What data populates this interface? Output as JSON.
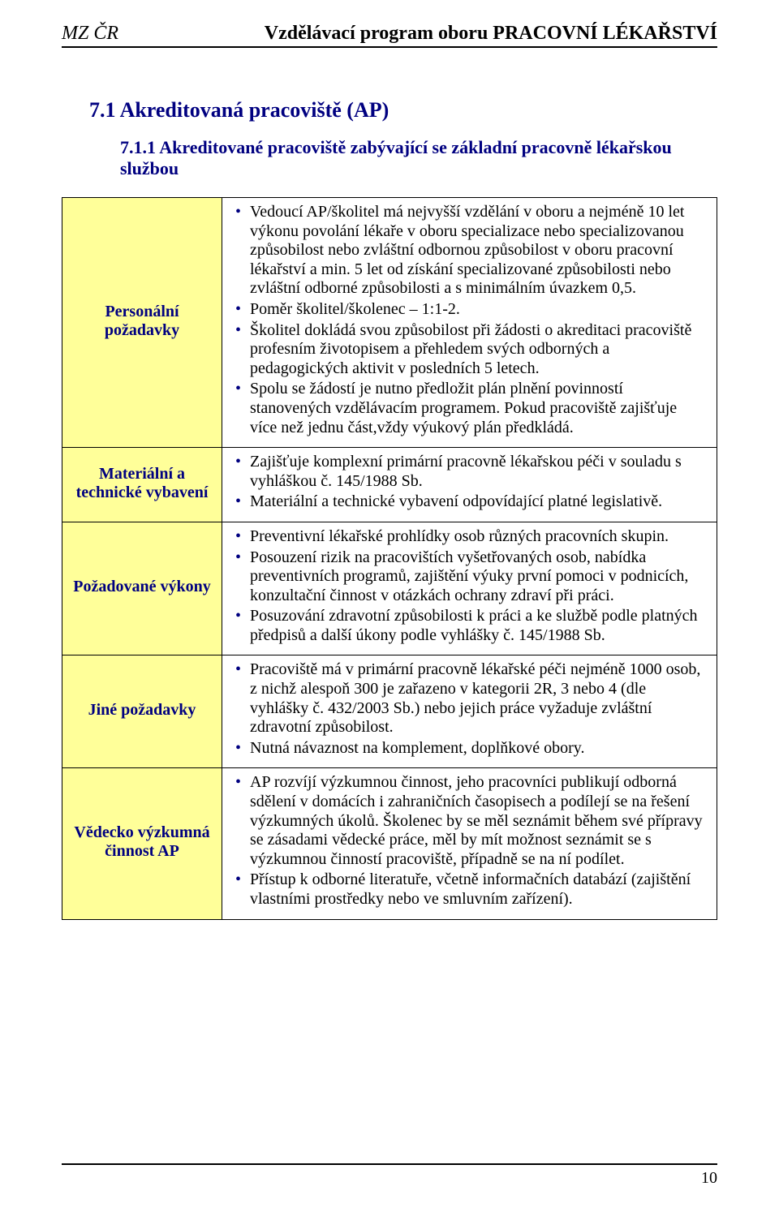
{
  "header": {
    "left": "MZ ČR",
    "right": "Vzdělávací program oboru PRACOVNÍ LÉKAŘSTVÍ"
  },
  "section": {
    "number_title": "7.1  Akreditovaná pracoviště (AP)",
    "sub_number_title": "7.1.1  Akreditované pracoviště zabývající se základní  pracovně lékařskou službou"
  },
  "rows": [
    {
      "label": "Personální požadavky",
      "items": [
        "Vedoucí AP/školitel má nejvyšší vzdělání v oboru a nejméně 10 let výkonu povolání lékaře v oboru specializace nebo specializovanou způsobilost nebo zvláštní odbornou způsobilost v oboru pracovní lékařství a min. 5 let od získání specializované způsobilosti nebo zvláštní odborné způsobilosti a s minimálním úvazkem 0,5.",
        "Poměr školitel/školenec – 1:1-2.",
        "Školitel dokládá svou způsobilost při žádosti o akreditaci pracoviště profesním životopisem a přehledem svých odborných a pedagogických aktivit v posledních 5 letech.",
        "Spolu se žádostí je nutno předložit plán plnění povinností stanovených vzdělávacím programem. Pokud pracoviště zajišťuje více než jednu část,vždy výukový plán předkládá."
      ]
    },
    {
      "label": "Materiální a technické vybavení",
      "items": [
        "Zajišťuje komplexní primární pracovně lékařskou péči v souladu s vyhláškou č. 145/1988 Sb.",
        "Materiální a technické vybavení odpovídající platné legislativě."
      ]
    },
    {
      "label": "Požadované výkony",
      "items": [
        "Preventivní lékařské prohlídky osob různých pracovních skupin.",
        "Posouzení rizik na pracovištích vyšetřovaných osob, nabídka preventivních programů, zajištění výuky první pomoci v podnicích, konzultační činnost v otázkách ochrany zdraví při práci.",
        "Posuzování zdravotní způsobilosti k práci a ke službě podle platných předpisů a další úkony podle vyhlášky č. 145/1988 Sb."
      ]
    },
    {
      "label": "Jiné požadavky",
      "items": [
        "Pracoviště má v primární pracovně lékařské péči nejméně 1000 osob, z nichž alespoň 300 je zařazeno v kategorii 2R, 3 nebo 4 (dle vyhlášky č. 432/2003 Sb.) nebo jejich práce vyžaduje zvláštní zdravotní způsobilost.",
        "Nutná návaznost na komplement, doplňkové obory."
      ]
    },
    {
      "label": "Vědecko výzkumná činnost AP",
      "items": [
        "AP rozvíjí výzkumnou činnost, jeho pracovníci publikují odborná sdělení v domácích i zahraničních časopisech a podílejí se na řešení výzkumných úkolů. Školenec by se měl seznámit během své přípravy se zásadami vědecké práce, měl by mít možnost seznámit se s výzkumnou činností pracoviště, případně se na ní podílet.",
        "Přístup k odborné literatuře, včetně informačních databází (zajištění vlastními prostředky nebo ve smluvním zařízení)."
      ]
    }
  ],
  "page_number": "10",
  "colors": {
    "heading": "#000080",
    "label_bg": "#ffff99",
    "bullet": "#000080",
    "rule": "#000000",
    "text": "#000000",
    "page_bg": "#ffffff"
  }
}
